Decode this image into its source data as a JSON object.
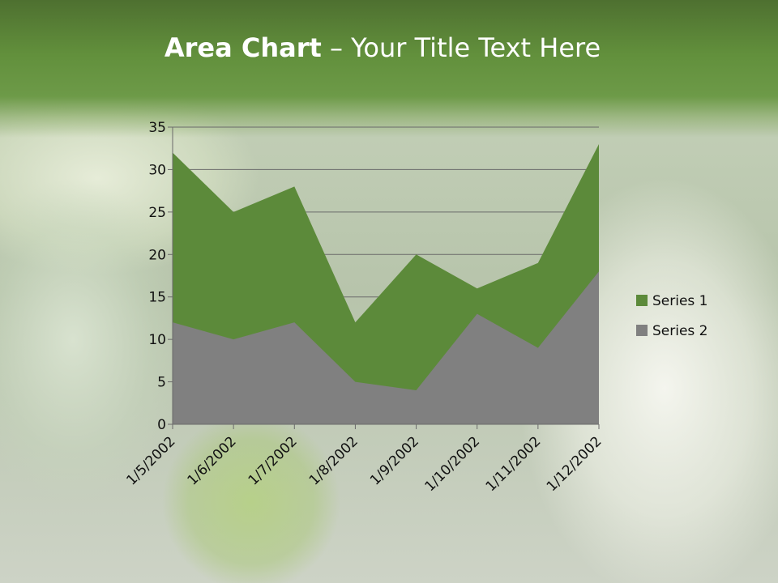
{
  "slide": {
    "title_bold": "Area Chart",
    "title_rest": " – Your Title Text Here"
  },
  "chart_data": {
    "type": "area",
    "title": "",
    "xlabel": "",
    "ylabel": "",
    "categories": [
      "1/5/2002",
      "1/6/2002",
      "1/7/2002",
      "1/8/2002",
      "1/9/2002",
      "1/10/2002",
      "1/11/2002",
      "1/12/2002"
    ],
    "series": [
      {
        "name": "Series 1",
        "values": [
          32,
          25,
          28,
          12,
          20,
          16,
          19,
          33
        ],
        "color": "#5c8a3a"
      },
      {
        "name": "Series 2",
        "values": [
          12,
          10,
          12,
          5,
          4,
          13,
          9,
          18
        ],
        "color": "#808080"
      }
    ],
    "ylim": [
      0,
      35
    ],
    "yticks": [
      0,
      5,
      10,
      15,
      20,
      25,
      30,
      35
    ],
    "grid": true,
    "legend": "right"
  }
}
